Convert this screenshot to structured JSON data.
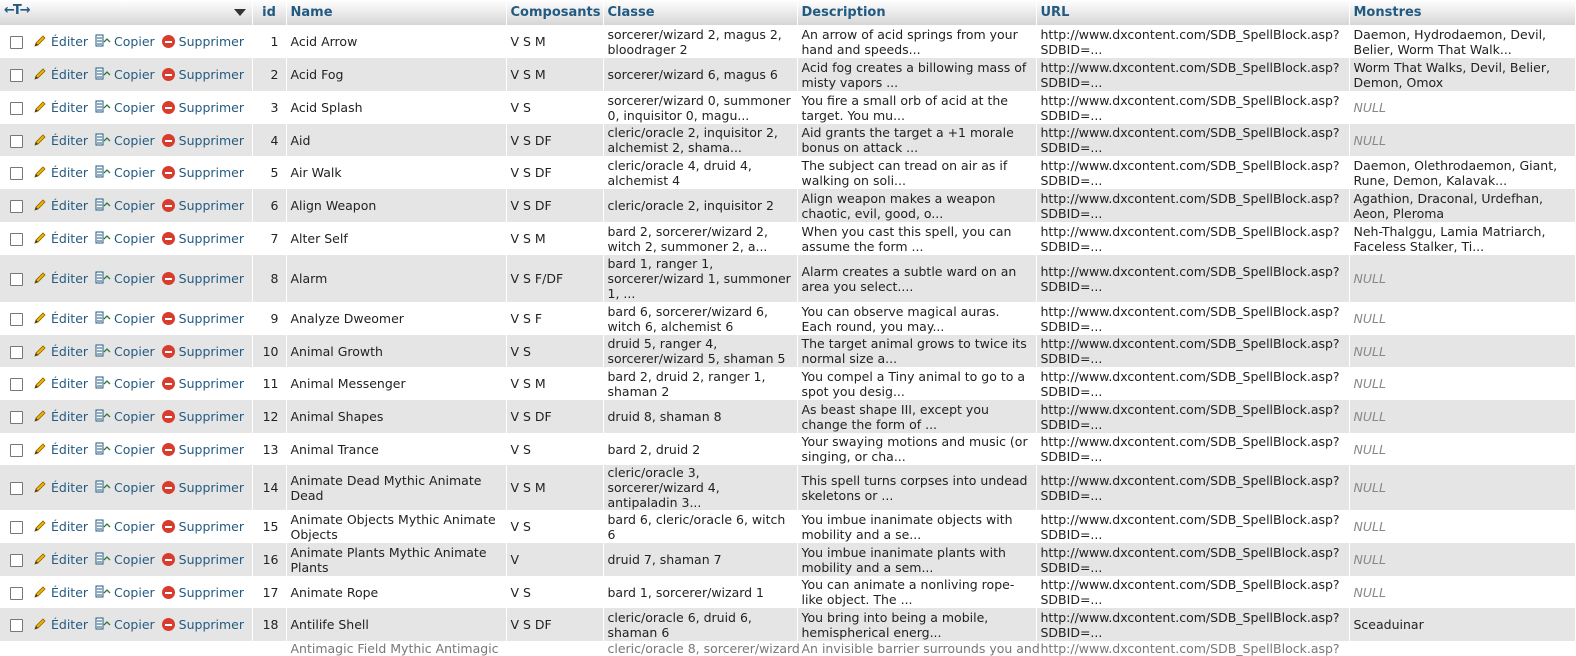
{
  "header": {
    "nav_arrows": "←T→",
    "columns": [
      "id",
      "Name",
      "Composants",
      "Classe",
      "Description",
      "URL",
      "Monstres"
    ]
  },
  "actions": {
    "edit": "Éditer",
    "copy": "Copier",
    "delete": "Supprimer"
  },
  "null_label": "NULL",
  "rows": [
    {
      "id": "1",
      "name": "Acid Arrow",
      "comp": "V S M",
      "classe": "sorcerer/wizard 2, magus 2, bloodrager 2",
      "desc": "An arrow of acid springs from your hand and speeds...",
      "url": "http://www.dxcontent.com/SDB_SpellBlock.asp?SDBID=...",
      "monstres": "Daemon, Hydrodaemon, Devil, Belier, Worm That Walk..."
    },
    {
      "id": "2",
      "name": "Acid Fog",
      "comp": "V S M",
      "classe": "sorcerer/wizard 6, magus 6",
      "desc": "Acid fog creates a billowing mass of misty vapors ...",
      "url": "http://www.dxcontent.com/SDB_SpellBlock.asp?SDBID=...",
      "monstres": "Worm That Walks, Devil, Belier, Demon, Omox"
    },
    {
      "id": "3",
      "name": "Acid Splash",
      "comp": "V S",
      "classe": "sorcerer/wizard 0, summoner 0, inquisitor 0, magu...",
      "desc": "You fire a small orb of acid at the target. You mu...",
      "url": "http://www.dxcontent.com/SDB_SpellBlock.asp?SDBID=...",
      "monstres": null
    },
    {
      "id": "4",
      "name": "Aid",
      "comp": "V S DF",
      "classe": "cleric/oracle 2, inquisitor 2, alchemist 2, shama...",
      "desc": "Aid grants the target a +1 morale bonus on attack ...",
      "url": "http://www.dxcontent.com/SDB_SpellBlock.asp?SDBID=...",
      "monstres": null
    },
    {
      "id": "5",
      "name": "Air Walk",
      "comp": "V S DF",
      "classe": "cleric/oracle 4, druid 4, alchemist 4",
      "desc": "The subject can tread on air as if walking on soli...",
      "url": "http://www.dxcontent.com/SDB_SpellBlock.asp?SDBID=...",
      "monstres": "Daemon, Olethrodaemon, Giant, Rune, Demon, Kalavak..."
    },
    {
      "id": "6",
      "name": "Align Weapon",
      "comp": "V S DF",
      "classe": "cleric/oracle 2, inquisitor 2",
      "desc": "Align weapon makes a weapon chaotic, evil, good, o...",
      "url": "http://www.dxcontent.com/SDB_SpellBlock.asp?SDBID=...",
      "monstres": "Agathion, Draconal, Urdefhan, Aeon, Pleroma"
    },
    {
      "id": "7",
      "name": "Alter Self",
      "comp": "V S M",
      "classe": "bard 2, sorcerer/wizard 2, witch 2, summoner 2, a...",
      "desc": "When you cast this spell, you can assume the form ...",
      "url": "http://www.dxcontent.com/SDB_SpellBlock.asp?SDBID=...",
      "monstres": "Neh-Thalggu, Lamia Matriarch, Faceless Stalker, Ti..."
    },
    {
      "id": "8",
      "name": "Alarm",
      "comp": "V S F/DF",
      "classe": "bard 1, ranger 1, sorcerer/wizard 1, summoner 1, ...",
      "desc": "Alarm creates a subtle ward on an area you select....",
      "url": "http://www.dxcontent.com/SDB_SpellBlock.asp?SDBID=...",
      "monstres": null,
      "tall": true
    },
    {
      "id": "9",
      "name": "Analyze Dweomer",
      "comp": "V S F",
      "classe": "bard 6, sorcerer/wizard 6, witch 6, alchemist 6",
      "desc": "You can observe magical auras. Each round, you may...",
      "url": "http://www.dxcontent.com/SDB_SpellBlock.asp?SDBID=...",
      "monstres": null
    },
    {
      "id": "10",
      "name": "Animal Growth",
      "comp": "V S",
      "classe": "druid 5, ranger 4, sorcerer/wizard 5, shaman 5",
      "desc": "The target animal grows to twice its normal size a...",
      "url": "http://www.dxcontent.com/SDB_SpellBlock.asp?SDBID=...",
      "monstres": null
    },
    {
      "id": "11",
      "name": "Animal Messenger",
      "comp": "V S M",
      "classe": "bard 2, druid 2, ranger 1, shaman 2",
      "desc": "You compel a Tiny animal to go to a spot you desig...",
      "url": "http://www.dxcontent.com/SDB_SpellBlock.asp?SDBID=...",
      "monstres": null
    },
    {
      "id": "12",
      "name": "Animal Shapes",
      "comp": "V S DF",
      "classe": "druid 8, shaman 8",
      "desc": "As beast shape III, except you change the form of ...",
      "url": "http://www.dxcontent.com/SDB_SpellBlock.asp?SDBID=...",
      "monstres": null
    },
    {
      "id": "13",
      "name": "Animal Trance",
      "comp": "V S",
      "classe": "bard 2, druid 2",
      "desc": "Your swaying motions and music (or singing, or cha...",
      "url": "http://www.dxcontent.com/SDB_SpellBlock.asp?SDBID=...",
      "monstres": null
    },
    {
      "id": "14",
      "name": "Animate Dead Mythic Animate Dead",
      "comp": "V S M",
      "classe": "cleric/oracle 3, sorcerer/wizard 4, antipaladin 3...",
      "desc": "This spell turns corpses into undead skeletons or ...",
      "url": "http://www.dxcontent.com/SDB_SpellBlock.asp?SDBID=...",
      "monstres": null
    },
    {
      "id": "15",
      "name": "Animate Objects Mythic Animate Objects",
      "comp": "V S",
      "classe": "bard 6, cleric/oracle 6, witch 6",
      "desc": "You imbue inanimate objects with mobility and a se...",
      "url": "http://www.dxcontent.com/SDB_SpellBlock.asp?SDBID=...",
      "monstres": null
    },
    {
      "id": "16",
      "name": "Animate Plants Mythic Animate Plants",
      "comp": "V",
      "classe": "druid 7, shaman 7",
      "desc": "You imbue inanimate plants with mobility and a sem...",
      "url": "http://www.dxcontent.com/SDB_SpellBlock.asp?SDBID=...",
      "monstres": null
    },
    {
      "id": "17",
      "name": "Animate Rope",
      "comp": "V S",
      "classe": "bard 1, sorcerer/wizard 1",
      "desc": "You can animate a nonliving rope-like object. The ...",
      "url": "http://www.dxcontent.com/SDB_SpellBlock.asp?SDBID=...",
      "monstres": null
    },
    {
      "id": "18",
      "name": "Antilife Shell",
      "comp": "V S DF",
      "classe": "cleric/oracle 6, druid 6, shaman 6",
      "desc": "You bring into being a mobile, hemispherical energ...",
      "url": "http://www.dxcontent.com/SDB_SpellBlock.asp?SDBID=...",
      "monstres": "Sceaduinar"
    }
  ],
  "partial_row": {
    "name": "Antimagic Field Mythic Antimagic",
    "classe": "cleric/oracle 8, sorcerer/wizard",
    "desc": "An invisible barrier surrounds you and",
    "url": "http://www.dxcontent.com/SDB_SpellBlock.asp?"
  }
}
